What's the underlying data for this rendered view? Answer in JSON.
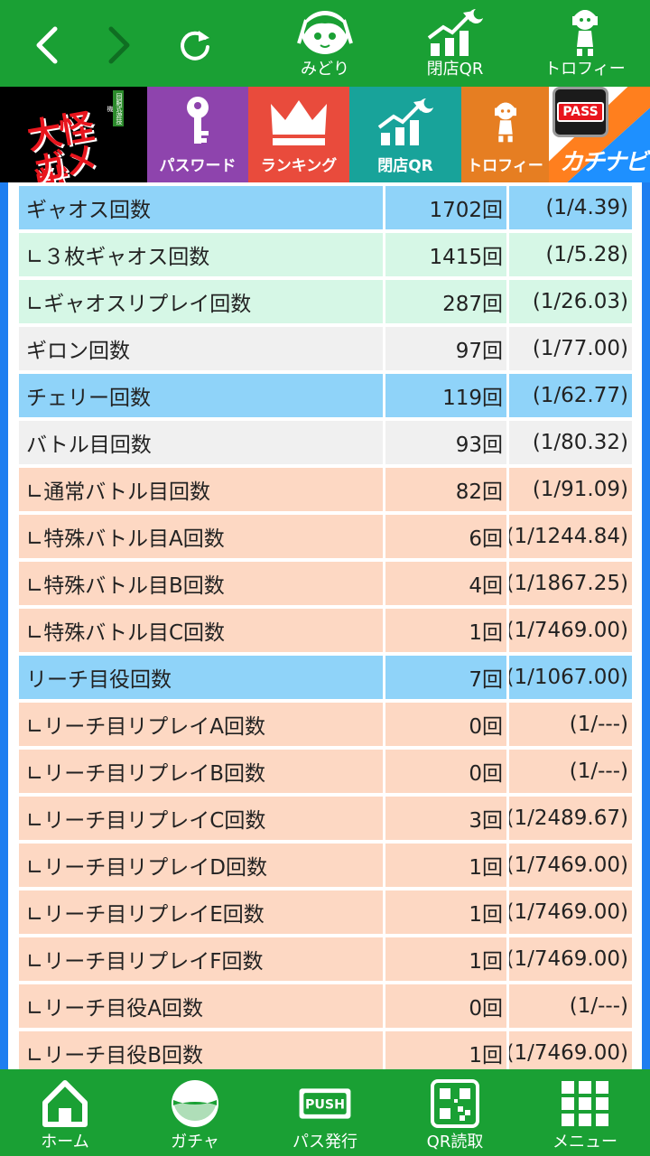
{
  "top_nav": {
    "back_icon": "chevron-left-icon",
    "forward_icon": "chevron-right-icon",
    "reload_icon": "reload-icon",
    "items": [
      {
        "label": "みどり",
        "icon": "midori-character-icon"
      },
      {
        "label": "閉店QR",
        "icon": "closing-qr-chart-icon"
      },
      {
        "label": "トロフィー",
        "icon": "trophy-figure-icon"
      }
    ]
  },
  "banner": {
    "logo": {
      "line1": "大怪獣",
      "line2": "ガメラ",
      "tag": "回胴式遊技機"
    },
    "tabs": [
      {
        "label": "パスワード",
        "icon": "key-icon",
        "color": "#8e44ad"
      },
      {
        "label": "ランキング",
        "icon": "crown-icon",
        "color": "#e94b3c"
      },
      {
        "label": "閉店QR",
        "icon": "closing-qr-chart-icon",
        "color": "#18a39a"
      },
      {
        "label": "トロフィー",
        "icon": "trophy-figure-icon",
        "color": "#e67e22"
      }
    ],
    "kachinavi": {
      "badge": "PASS",
      "text": "カチナビ"
    }
  },
  "table": {
    "rows": [
      {
        "name": "ギャオス回数",
        "count": "1702回",
        "rate": "(1/4.39)",
        "style": "blue"
      },
      {
        "name": "∟３枚ギャオス回数",
        "count": "1415回",
        "rate": "(1/5.28)",
        "style": "mint"
      },
      {
        "name": "∟ギャオスリプレイ回数",
        "count": "287回",
        "rate": "(1/26.03)",
        "style": "mint"
      },
      {
        "name": "ギロン回数",
        "count": "97回",
        "rate": "(1/77.00)",
        "style": "gray"
      },
      {
        "name": "チェリー回数",
        "count": "119回",
        "rate": "(1/62.77)",
        "style": "blue"
      },
      {
        "name": "バトル目回数",
        "count": "93回",
        "rate": "(1/80.32)",
        "style": "gray"
      },
      {
        "name": "∟通常バトル目回数",
        "count": "82回",
        "rate": "(1/91.09)",
        "style": "peach"
      },
      {
        "name": "∟特殊バトル目A回数",
        "count": "6回",
        "rate": "(1/1244.84)",
        "style": "peach"
      },
      {
        "name": "∟特殊バトル目B回数",
        "count": "4回",
        "rate": "(1/1867.25)",
        "style": "peach"
      },
      {
        "name": "∟特殊バトル目C回数",
        "count": "1回",
        "rate": "(1/7469.00)",
        "style": "peach"
      },
      {
        "name": "リーチ目役回数",
        "count": "7回",
        "rate": "(1/1067.00)",
        "style": "blue"
      },
      {
        "name": "∟リーチ目リプレイA回数",
        "count": "0回",
        "rate": "(1/---)",
        "style": "peach"
      },
      {
        "name": "∟リーチ目リプレイB回数",
        "count": "0回",
        "rate": "(1/---)",
        "style": "peach"
      },
      {
        "name": "∟リーチ目リプレイC回数",
        "count": "3回",
        "rate": "(1/2489.67)",
        "style": "peach"
      },
      {
        "name": "∟リーチ目リプレイD回数",
        "count": "1回",
        "rate": "(1/7469.00)",
        "style": "peach"
      },
      {
        "name": "∟リーチ目リプレイE回数",
        "count": "1回",
        "rate": "(1/7469.00)",
        "style": "peach"
      },
      {
        "name": "∟リーチ目リプレイF回数",
        "count": "1回",
        "rate": "(1/7469.00)",
        "style": "peach"
      },
      {
        "name": "∟リーチ目役A回数",
        "count": "0回",
        "rate": "(1/---)",
        "style": "peach"
      },
      {
        "name": "∟リーチ目役B回数",
        "count": "1回",
        "rate": "(1/7469.00)",
        "style": "peach"
      }
    ]
  },
  "bottom_nav": {
    "items": [
      {
        "label": "ホーム",
        "icon": "home-icon"
      },
      {
        "label": "ガチャ",
        "icon": "gacha-capsule-icon"
      },
      {
        "label": "パス発行",
        "icon": "push-ticket-icon",
        "badge": "PUSH"
      },
      {
        "label": "QR読取",
        "icon": "qr-code-icon"
      },
      {
        "label": "メニュー",
        "icon": "menu-grid-icon"
      }
    ]
  },
  "colors": {
    "bar_green": "#1aa034",
    "frame_blue": "#1e7ef0",
    "row_blue": "#8fd3f9",
    "row_mint": "#d6f7e6",
    "row_gray": "#f0f0f0",
    "row_peach": "#fdd8c3"
  }
}
